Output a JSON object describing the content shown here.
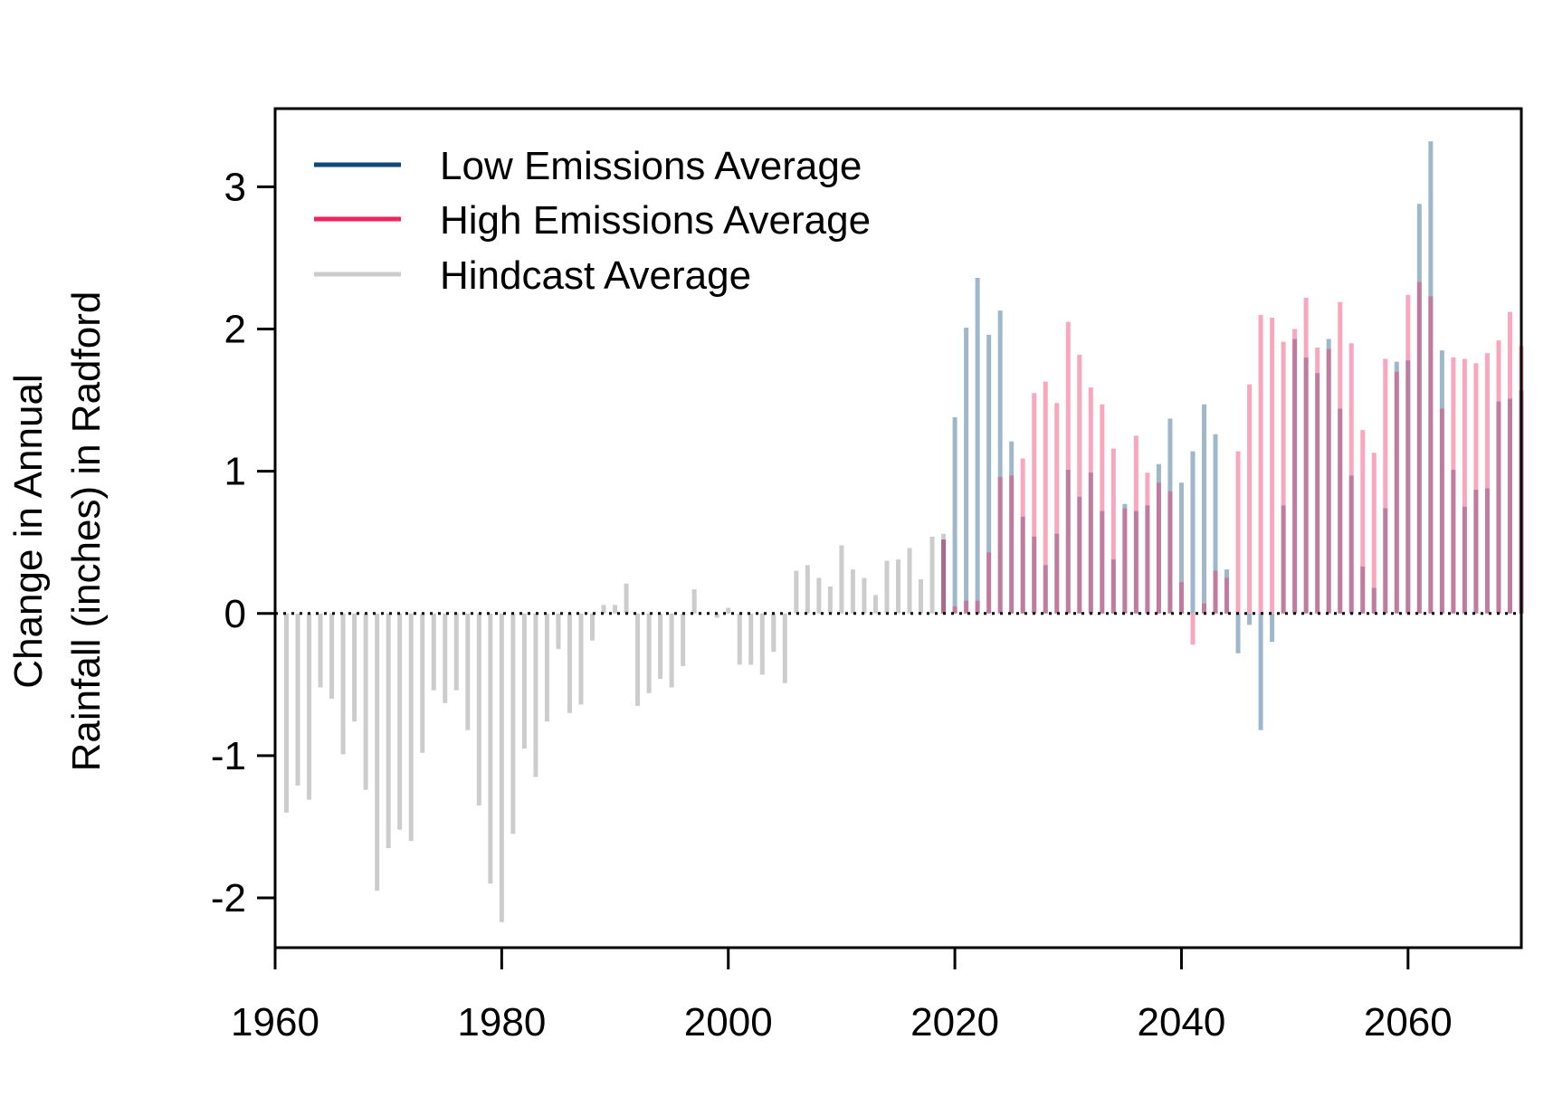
{
  "chart_data": {
    "type": "bar",
    "ylabel_lines": [
      "Change in Annual",
      "Rainfall (inches) in Radford"
    ],
    "xlabel": "",
    "title": "",
    "xlim": [
      1960,
      2070
    ],
    "ylim": [
      -2.35,
      3.55
    ],
    "x_ticks": [
      1960,
      1980,
      2000,
      2020,
      2040,
      2060
    ],
    "y_ticks": [
      -2,
      -1,
      0,
      1,
      2,
      3
    ],
    "grid": false,
    "reference_line": {
      "y": 0,
      "style": "dotted"
    },
    "legend": {
      "position": "top-left",
      "entries": [
        {
          "label": "Low Emissions Average",
          "color": "#0d4a7a"
        },
        {
          "label": "High Emissions Average",
          "color": "#f0245c"
        },
        {
          "label": "Hindcast Average",
          "color": "#cccccc"
        }
      ]
    },
    "series": [
      {
        "name": "Hindcast Average",
        "color": "#cccccc",
        "x": [
          1961,
          1962,
          1963,
          1964,
          1965,
          1966,
          1967,
          1968,
          1969,
          1970,
          1971,
          1972,
          1973,
          1974,
          1975,
          1976,
          1977,
          1978,
          1979,
          1980,
          1981,
          1982,
          1983,
          1984,
          1985,
          1986,
          1987,
          1988,
          1989,
          1990,
          1991,
          1992,
          1993,
          1994,
          1995,
          1996,
          1997,
          1998,
          1999,
          2000,
          2001,
          2002,
          2003,
          2004,
          2005,
          2006,
          2007,
          2008,
          2009,
          2010,
          2011,
          2012,
          2013,
          2014,
          2015,
          2016,
          2017,
          2018,
          2019
        ],
        "values": [
          -1.4,
          -1.21,
          -1.31,
          -0.52,
          -0.6,
          -0.99,
          -0.76,
          -1.24,
          -1.95,
          -1.65,
          -1.52,
          -1.6,
          -0.98,
          -0.54,
          -0.63,
          -0.54,
          -0.82,
          -1.35,
          -1.9,
          -2.17,
          -1.55,
          -0.95,
          -1.15,
          -0.76,
          -0.25,
          -0.7,
          -0.64,
          -0.19,
          0.06,
          0.06,
          0.21,
          -0.65,
          -0.56,
          -0.46,
          -0.52,
          -0.37,
          0.17,
          0.0,
          -0.03,
          0.04,
          -0.36,
          -0.36,
          -0.43,
          -0.27,
          -0.49,
          0.3,
          0.34,
          0.25,
          0.19,
          0.48,
          0.31,
          0.25,
          0.13,
          0.37,
          0.38,
          0.46,
          0.24,
          0.54,
          0.56
        ]
      },
      {
        "name": "Low Emissions Average",
        "color": "#0d4a7a",
        "x": [
          2019,
          2020,
          2021,
          2022,
          2023,
          2024,
          2025,
          2026,
          2027,
          2028,
          2029,
          2030,
          2031,
          2032,
          2033,
          2034,
          2035,
          2036,
          2037,
          2038,
          2039,
          2040,
          2041,
          2042,
          2043,
          2044,
          2045,
          2046,
          2047,
          2048,
          2049,
          2050,
          2051,
          2052,
          2053,
          2054,
          2055,
          2056,
          2057,
          2058,
          2059,
          2060,
          2061,
          2062,
          2063,
          2064,
          2065,
          2066,
          2067,
          2068,
          2069,
          2070
        ],
        "values": [
          0.52,
          1.38,
          2.01,
          2.36,
          1.96,
          2.13,
          1.21,
          0.68,
          0.54,
          0.34,
          0.56,
          1.01,
          0.82,
          0.99,
          0.72,
          0.38,
          0.77,
          0.72,
          0.76,
          1.05,
          1.37,
          0.92,
          1.14,
          1.47,
          1.26,
          0.31,
          -0.28,
          -0.08,
          -0.82,
          -0.2,
          0.76,
          1.93,
          1.8,
          1.69,
          1.93,
          1.44,
          0.97,
          0.33,
          0.18,
          0.74,
          1.77,
          1.78,
          2.88,
          3.32,
          1.85,
          1.01,
          0.75,
          0.87,
          0.88,
          1.49,
          1.51,
          1.57
        ]
      },
      {
        "name": "High Emissions Average",
        "color": "#f0245c",
        "x": [
          2019,
          2020,
          2021,
          2022,
          2023,
          2024,
          2025,
          2026,
          2027,
          2028,
          2029,
          2030,
          2031,
          2032,
          2033,
          2034,
          2035,
          2036,
          2037,
          2038,
          2039,
          2040,
          2041,
          2042,
          2043,
          2044,
          2045,
          2046,
          2047,
          2048,
          2049,
          2050,
          2051,
          2052,
          2053,
          2054,
          2055,
          2056,
          2057,
          2058,
          2059,
          2060,
          2061,
          2062,
          2063,
          2064,
          2065,
          2066,
          2067,
          2068,
          2069,
          2070
        ],
        "values": [
          0.52,
          0.05,
          0.09,
          0.09,
          0.43,
          0.96,
          0.97,
          1.09,
          1.55,
          1.63,
          1.48,
          2.05,
          1.82,
          1.59,
          1.47,
          1.16,
          0.74,
          1.25,
          0.99,
          0.92,
          0.86,
          0.22,
          -0.22,
          0.07,
          0.3,
          0.25,
          1.14,
          1.61,
          2.1,
          2.08,
          1.91,
          2.0,
          2.22,
          1.87,
          1.86,
          2.19,
          1.9,
          1.29,
          1.13,
          1.79,
          1.7,
          2.24,
          2.33,
          2.23,
          1.44,
          1.8,
          1.79,
          1.76,
          1.83,
          1.92,
          2.12,
          1.88
        ]
      }
    ]
  }
}
